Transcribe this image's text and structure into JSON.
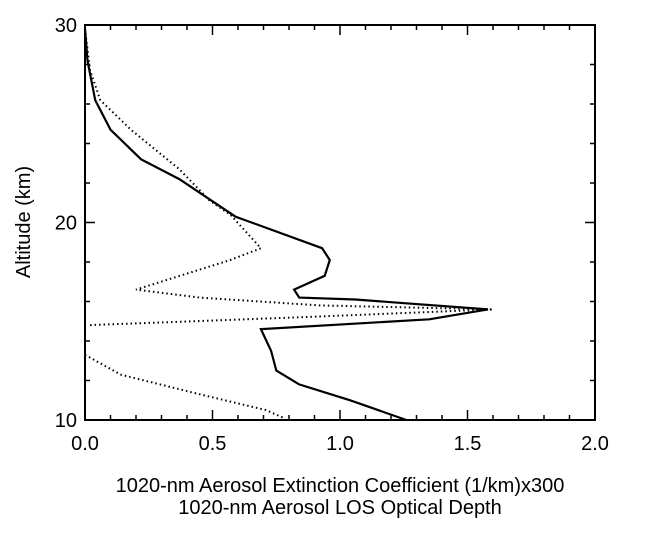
{
  "chart_data": {
    "type": "line",
    "xlabel": [
      "1020-nm Aerosol Extinction Coefficient (1/km)x300",
      "1020-nm Aerosol LOS Optical Depth"
    ],
    "ylabel": "Altitude (km)",
    "xlim": [
      0,
      2
    ],
    "ylim": [
      10,
      30
    ],
    "xticks": [
      {
        "value": 0,
        "label": "0.0"
      },
      0.5,
      {
        "value": 1,
        "label": "1.0"
      },
      1.5,
      {
        "value": 2,
        "label": "2.0"
      }
    ],
    "yticks": [
      10,
      20,
      30
    ],
    "xminorticks": [
      0.1,
      0.2,
      0.3,
      0.4,
      0.6,
      0.7,
      0.8,
      0.9,
      1.1,
      1.2,
      1.3,
      1.4,
      1.6,
      1.7,
      1.8,
      1.9
    ],
    "yminorticks": [
      12,
      14,
      16,
      18,
      22,
      24,
      26,
      28
    ],
    "series": [
      {
        "style": "solid",
        "color": "#000000",
        "y": [
          29.8,
          28.2,
          26.2,
          24.7,
          23.2,
          22.2,
          20.3,
          18.7,
          18.1,
          17.3,
          16.6,
          16.2,
          16.1,
          15.6,
          15.1,
          14.6,
          13.5,
          12.5,
          11.8,
          11.0,
          10.0
        ],
        "values": [
          0.0,
          0.01,
          0.04,
          0.1,
          0.22,
          0.37,
          0.59,
          0.93,
          0.96,
          0.94,
          0.82,
          0.84,
          1.06,
          1.58,
          1.35,
          0.69,
          0.73,
          0.75,
          0.84,
          1.04,
          1.26
        ]
      },
      {
        "style": "dotted",
        "color": "#000000",
        "y": [
          29.8,
          27.7,
          26.2,
          24.7,
          22.7,
          21.1,
          20.4,
          18.7,
          18.1,
          16.6,
          16.2,
          15.8,
          15.6,
          15.2,
          14.8,
          null,
          13.3,
          12.3,
          11.3,
          10.5,
          10.1
        ],
        "values": [
          0.0,
          0.02,
          0.06,
          0.18,
          0.37,
          0.49,
          0.57,
          0.69,
          0.57,
          0.2,
          0.45,
          0.92,
          1.6,
          0.84,
          0.01,
          null,
          0.0,
          0.14,
          0.45,
          0.71,
          0.78
        ]
      }
    ]
  }
}
